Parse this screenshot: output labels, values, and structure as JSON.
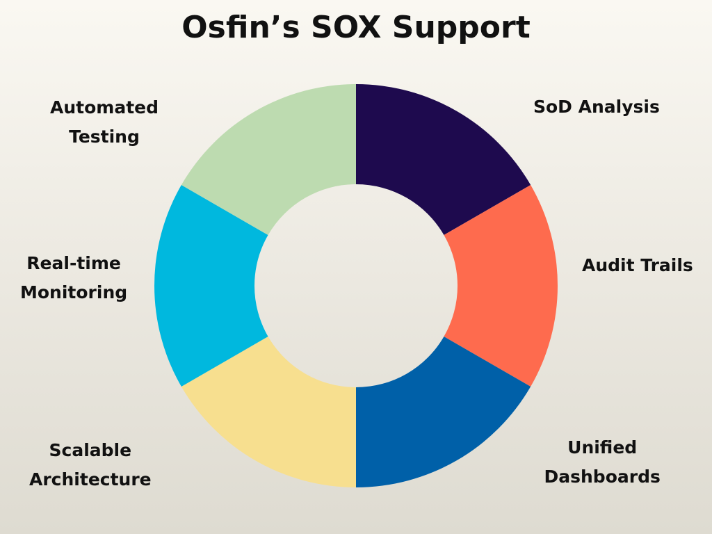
{
  "title": "Osfin’s SOX Support",
  "chart_data": {
    "type": "pie",
    "title": "Osfin’s SOX Support",
    "donut": true,
    "categories": [
      "SoD Analysis",
      "Audit Trails",
      "Unified Dashboards",
      "Scalable Architecture",
      "Real-time Monitoring",
      "Automated Testing"
    ],
    "values": [
      1,
      1,
      1,
      1,
      1,
      1
    ],
    "label_lines": [
      [
        "SoD Analysis"
      ],
      [
        "Audit Trails"
      ],
      [
        "Unified",
        "Dashboards"
      ],
      [
        "Scalable",
        "Architecture"
      ],
      [
        "Real-time",
        "Monitoring"
      ],
      [
        "Automated",
        "Testing"
      ]
    ],
    "colors": [
      "#1e0a4e",
      "#fe6b4e",
      "#0060a8",
      "#f7df8f",
      "#00b8de",
      "#bddbb0"
    ]
  }
}
